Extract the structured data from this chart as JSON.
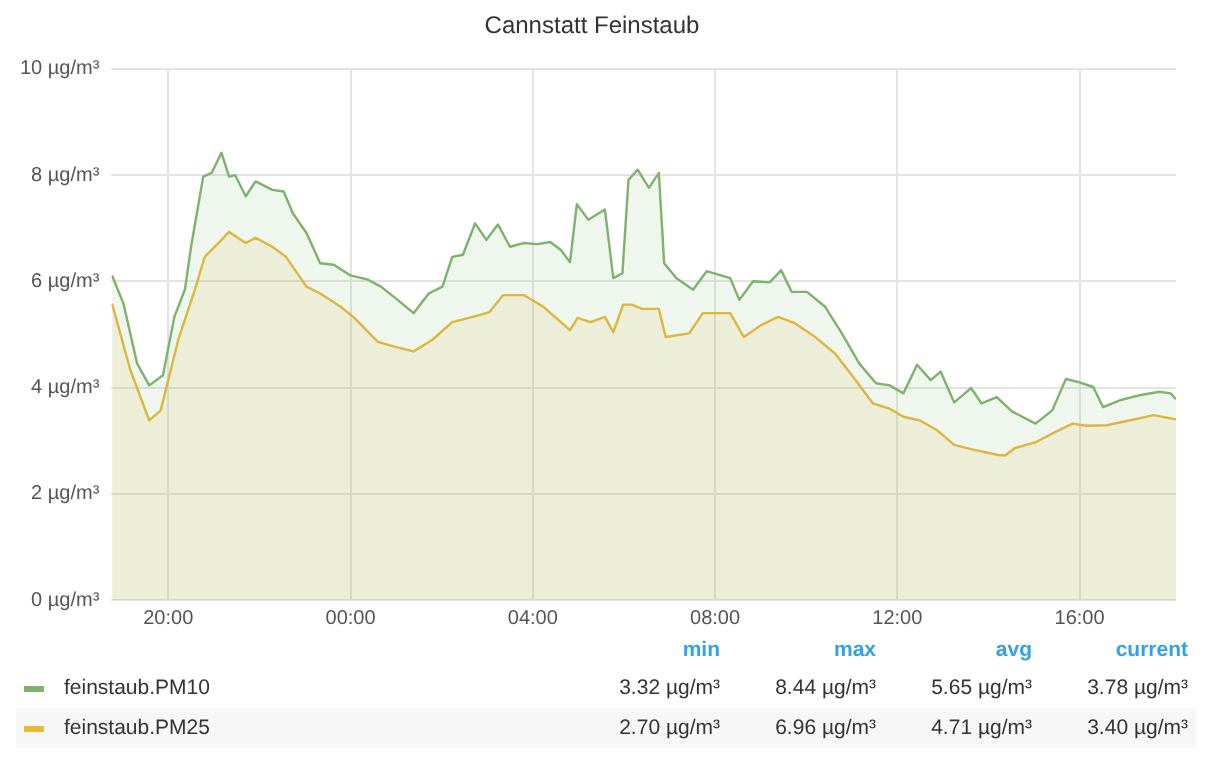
{
  "chart_data": {
    "type": "area",
    "title": "Cannstatt Feinstaub",
    "xlim": [
      "--01-01T18:45",
      "--01-02T18:07"
    ],
    "xticks": [
      {
        "value": "--01-01T20:00",
        "label": "20:00"
      },
      {
        "value": "--01-02T00:00",
        "label": "00:00"
      },
      {
        "value": "--01-02T04:00",
        "label": "04:00"
      },
      {
        "value": "--01-02T08:00",
        "label": "08:00"
      },
      {
        "value": "--01-02T12:00",
        "label": "12:00"
      },
      {
        "value": "--01-02T16:00",
        "label": "16:00"
      }
    ],
    "ylim": [
      0,
      10
    ],
    "yticks": [
      {
        "value": 0,
        "label": "0 µg/m³"
      },
      {
        "value": 2,
        "label": "2 µg/m³"
      },
      {
        "value": 4,
        "label": "4 µg/m³"
      },
      {
        "value": 6,
        "label": "6 µg/m³"
      },
      {
        "value": 8,
        "label": "8 µg/m³"
      },
      {
        "value": 10,
        "label": "10 µg/m³"
      }
    ],
    "grid": true,
    "legend": "bottom",
    "series": [
      {
        "name": "feinstaub.PM10",
        "color": "#7eb26d",
        "x": [
          "--01-01T18:46",
          "--01-01T19:01",
          "--01-01T19:19",
          "--01-01T19:35",
          "--01-01T19:53",
          "--01-01T20:08",
          "--01-01T20:22",
          "--01-01T20:30",
          "--01-01T20:46",
          "--01-01T20:57",
          "--01-01T21:10",
          "--01-01T21:20",
          "--01-01T21:28",
          "--01-01T21:42",
          "--01-01T21:55",
          "--01-01T22:17",
          "--01-01T22:32",
          "--01-01T22:44",
          "--01-01T23:02",
          "--01-01T23:20",
          "--01-01T23:38",
          "--01-02T00:00",
          "--01-02T00:23",
          "--01-02T00:40",
          "--01-02T01:02",
          "--01-02T01:23",
          "--01-02T01:43",
          "--01-02T02:01",
          "--01-02T02:14",
          "--01-02T02:28",
          "--01-02T02:44",
          "--01-02T02:59",
          "--01-02T03:14",
          "--01-02T03:30",
          "--01-02T03:48",
          "--01-02T04:06",
          "--01-02T04:23",
          "--01-02T04:37",
          "--01-02T04:49",
          "--01-02T04:58",
          "--01-02T05:13",
          "--01-02T05:35",
          "--01-02T05:46",
          "--01-02T05:58",
          "--01-02T06:06",
          "--01-02T06:18",
          "--01-02T06:33",
          "--01-02T06:46",
          "--01-02T06:53",
          "--01-02T07:09",
          "--01-02T07:31",
          "--01-02T07:49",
          "--01-02T08:20",
          "--01-02T08:32",
          "--01-02T08:50",
          "--01-02T09:12",
          "--01-02T09:27",
          "--01-02T09:41",
          "--01-02T10:01",
          "--01-02T10:25",
          "--01-02T10:47",
          "--01-02T11:10",
          "--01-02T11:32",
          "--01-02T11:50",
          "--01-02T12:08",
          "--01-02T12:26",
          "--01-02T12:44",
          "--01-02T12:57",
          "--01-02T13:15",
          "--01-02T13:37",
          "--01-02T13:51",
          "--01-02T14:11",
          "--01-02T14:31",
          "--01-02T15:02",
          "--01-02T15:24",
          "--01-02T15:42",
          "--01-02T15:59",
          "--01-02T16:18",
          "--01-02T16:31",
          "--01-02T16:53",
          "--01-02T17:21",
          "--01-02T17:45",
          "--01-02T18:00",
          "--01-02T18:07"
        ],
        "values": [
          6.11,
          5.58,
          4.45,
          4.04,
          4.23,
          5.33,
          5.85,
          6.65,
          7.97,
          8.04,
          8.42,
          7.97,
          8.0,
          7.6,
          7.88,
          7.72,
          7.69,
          7.28,
          6.91,
          6.34,
          6.31,
          6.11,
          6.03,
          5.9,
          5.65,
          5.4,
          5.77,
          5.9,
          6.46,
          6.5,
          7.09,
          6.78,
          7.07,
          6.65,
          6.72,
          6.7,
          6.74,
          6.59,
          6.36,
          7.45,
          7.16,
          7.35,
          6.06,
          6.15,
          7.91,
          8.1,
          7.76,
          8.04,
          6.34,
          6.06,
          5.84,
          6.19,
          6.06,
          5.65,
          6.0,
          5.98,
          6.21,
          5.8,
          5.8,
          5.52,
          5.02,
          4.45,
          4.08,
          4.04,
          3.89,
          4.43,
          4.14,
          4.3,
          3.72,
          3.99,
          3.7,
          3.82,
          3.55,
          3.32,
          3.57,
          4.16,
          4.1,
          4.01,
          3.63,
          3.76,
          3.86,
          3.92,
          3.89,
          3.78
        ]
      },
      {
        "name": "feinstaub.PM25",
        "color": "#eab839",
        "x": [
          "--01-01T18:46",
          "--01-01T19:10",
          "--01-01T19:35",
          "--01-01T19:50",
          "--01-01T20:13",
          "--01-01T20:35",
          "--01-01T20:48",
          "--01-01T21:06",
          "--01-01T21:20",
          "--01-01T21:42",
          "--01-01T21:55",
          "--01-01T22:17",
          "--01-01T22:35",
          "--01-01T23:02",
          "--01-01T23:20",
          "--01-01T23:47",
          "--01-02T00:05",
          "--01-02T00:36",
          "--01-02T00:58",
          "--01-02T01:23",
          "--01-02T01:47",
          "--01-02T02:14",
          "--01-02T02:41",
          "--01-02T03:03",
          "--01-02T03:21",
          "--01-02T03:48",
          "--01-02T04:14",
          "--01-02T04:49",
          "--01-02T04:59",
          "--01-02T05:16",
          "--01-02T05:35",
          "--01-02T05:46",
          "--01-02T05:59",
          "--01-02T06:10",
          "--01-02T06:24",
          "--01-02T06:46",
          "--01-02T06:55",
          "--01-02T07:26",
          "--01-02T07:44",
          "--01-02T08:20",
          "--01-02T08:38",
          "--01-02T09:00",
          "--01-02T09:23",
          "--01-02T09:45",
          "--01-02T10:12",
          "--01-02T10:38",
          "--01-02T11:05",
          "--01-02T11:28",
          "--01-02T11:50",
          "--01-02T12:08",
          "--01-02T12:30",
          "--01-02T12:53",
          "--01-02T13:15",
          "--01-02T13:37",
          "--01-02T14:13",
          "--01-02T14:22",
          "--01-02T14:35",
          "--01-02T15:02",
          "--01-02T15:29",
          "--01-02T15:51",
          "--01-02T16:09",
          "--01-02T16:36",
          "--01-02T17:02",
          "--01-02T17:38",
          "--01-02T18:07"
        ],
        "values": [
          5.58,
          4.33,
          3.38,
          3.57,
          4.89,
          5.84,
          6.46,
          6.72,
          6.93,
          6.72,
          6.82,
          6.65,
          6.46,
          5.9,
          5.77,
          5.52,
          5.31,
          4.86,
          4.77,
          4.68,
          4.89,
          5.23,
          5.33,
          5.42,
          5.74,
          5.74,
          5.52,
          5.08,
          5.31,
          5.23,
          5.33,
          5.04,
          5.56,
          5.56,
          5.48,
          5.48,
          4.95,
          5.02,
          5.4,
          5.4,
          4.95,
          5.17,
          5.33,
          5.21,
          4.95,
          4.64,
          4.14,
          3.7,
          3.6,
          3.45,
          3.38,
          3.19,
          2.92,
          2.84,
          2.73,
          2.72,
          2.86,
          2.97,
          3.17,
          3.32,
          3.28,
          3.29,
          3.37,
          3.48,
          3.4
        ]
      }
    ],
    "annotations": [
      "min",
      "max",
      "avg",
      "current",
      "3.32 µg/m³",
      "8.44 µg/m³",
      "5.65 µg/m³",
      "3.78 µg/m³",
      "2.70 µg/m³",
      "6.96 µg/m³",
      "4.71 µg/m³",
      "3.40 µg/m³"
    ]
  }
}
